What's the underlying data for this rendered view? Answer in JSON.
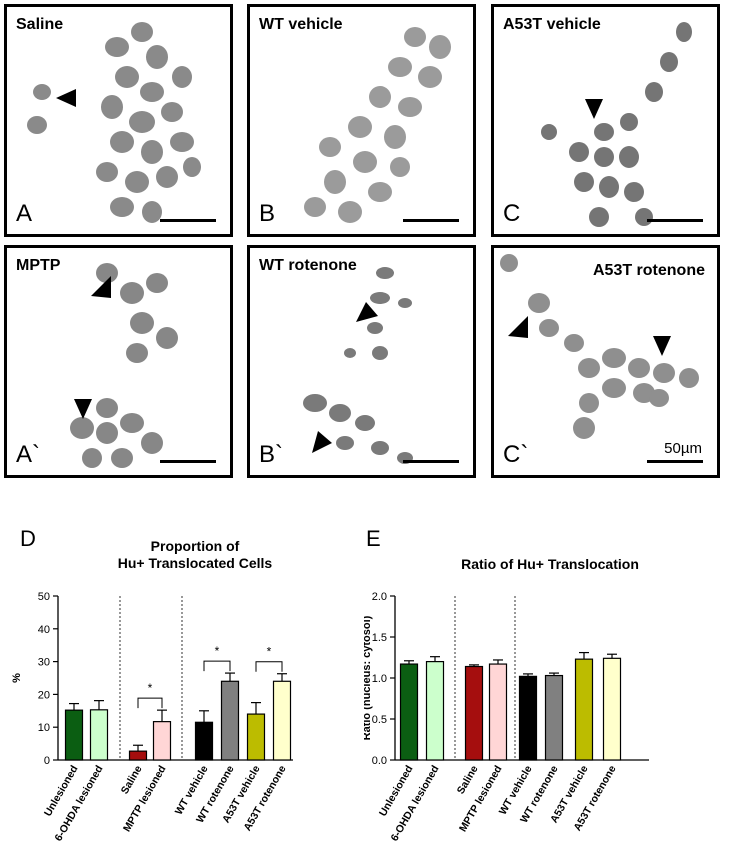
{
  "panels": [
    {
      "title": "Saline",
      "letter": "A"
    },
    {
      "title": "WT vehicle",
      "letter": "B"
    },
    {
      "title": "A53T vehicle",
      "letter": "C"
    },
    {
      "title": "MPTP",
      "letter": "A`"
    },
    {
      "title": "WT rotenone",
      "letter": "B`"
    },
    {
      "title": "A53T rotenone",
      "letter": "C`"
    }
  ],
  "scale_label": "50µm",
  "figure_letters": {
    "d": "D",
    "e": "E"
  },
  "colors": {
    "dark_green": "#0b5e12",
    "light_green": "#ccffcc",
    "dark_red": "#a50e0e",
    "light_pink": "#ffd6d6",
    "black": "#000000",
    "grey": "#808080",
    "olive_yellow": "#bcbc00",
    "light_yellow": "#ffffcc"
  },
  "chart_data": [
    {
      "type": "bar",
      "title": "Proportion of\nHu+ Translocated Cells",
      "ylabel": "%",
      "ylim": [
        0,
        50
      ],
      "yticks": [
        0,
        10,
        20,
        30,
        40,
        50
      ],
      "categories": [
        "Unlesioned",
        "6-OHDA lesioned",
        "Saline",
        "MPTP lesioned",
        "WT vehicle",
        "WT rotenone",
        "A53T vehicle",
        "A53T rotenone"
      ],
      "values": [
        15.2,
        15.3,
        2.7,
        11.7,
        11.5,
        24.0,
        14.0,
        24.0
      ],
      "errors": [
        2.0,
        2.8,
        1.8,
        3.5,
        3.5,
        2.5,
        3.5,
        2.3
      ],
      "significance": [
        {
          "pair": [
            "Saline",
            "MPTP lesioned"
          ],
          "label": "*"
        },
        {
          "pair": [
            "WT vehicle",
            "WT rotenone"
          ],
          "label": "*"
        },
        {
          "pair": [
            "A53T vehicle",
            "A53T rotenone"
          ],
          "label": "*"
        }
      ],
      "group_dividers_after": [
        "6-OHDA lesioned",
        "MPTP lesioned"
      ]
    },
    {
      "type": "bar",
      "title": "Ratio of Hu+ Translocation",
      "ylabel": "Ratio (nucleus: cytosol)",
      "ylim": [
        0,
        2.0
      ],
      "yticks": [
        "0.0",
        "0.5",
        "1.0",
        "1.5",
        "2.0"
      ],
      "categories": [
        "Unlesioned",
        "6-OHDA lesioned",
        "Saline",
        "MPTP lesioned",
        "WT vehicle",
        "WT rotenone",
        "A53T vehicle",
        "A53T rotenone"
      ],
      "values": [
        1.17,
        1.2,
        1.14,
        1.17,
        1.02,
        1.03,
        1.23,
        1.24
      ],
      "errors": [
        0.04,
        0.06,
        0.02,
        0.05,
        0.03,
        0.03,
        0.08,
        0.05
      ],
      "group_dividers_after": [
        "6-OHDA lesioned",
        "MPTP lesioned"
      ]
    }
  ]
}
